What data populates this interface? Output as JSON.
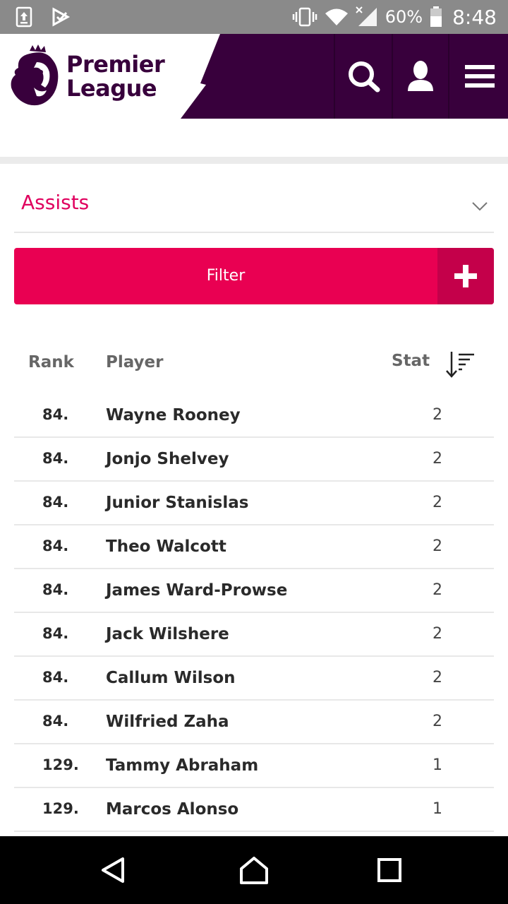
{
  "status_bar": {
    "battery_percent": "60%",
    "time": "8:48",
    "icons": [
      "upload-icon",
      "play-store-icon",
      "vibrate-icon",
      "wifi-icon",
      "signal-icon",
      "battery-icon"
    ]
  },
  "header": {
    "brand_line1": "Premier",
    "brand_line2": "League",
    "colors": {
      "purple": "#38003c",
      "accent": "#e90052"
    }
  },
  "stat_selector": {
    "selected": "Assists"
  },
  "filter": {
    "label": "Filter"
  },
  "table": {
    "columns": {
      "rank": "Rank",
      "player": "Player",
      "stat": "Stat"
    },
    "rows": [
      {
        "rank": "84.",
        "player": "Wayne Rooney",
        "stat": "2"
      },
      {
        "rank": "84.",
        "player": "Jonjo Shelvey",
        "stat": "2"
      },
      {
        "rank": "84.",
        "player": "Junior Stanislas",
        "stat": "2"
      },
      {
        "rank": "84.",
        "player": "Theo Walcott",
        "stat": "2"
      },
      {
        "rank": "84.",
        "player": "James Ward-Prowse",
        "stat": "2"
      },
      {
        "rank": "84.",
        "player": "Jack Wilshere",
        "stat": "2"
      },
      {
        "rank": "84.",
        "player": "Callum Wilson",
        "stat": "2"
      },
      {
        "rank": "84.",
        "player": "Wilfried Zaha",
        "stat": "2"
      },
      {
        "rank": "129.",
        "player": "Tammy Abraham",
        "stat": "1"
      },
      {
        "rank": "129.",
        "player": "Marcos Alonso",
        "stat": "1"
      }
    ]
  }
}
